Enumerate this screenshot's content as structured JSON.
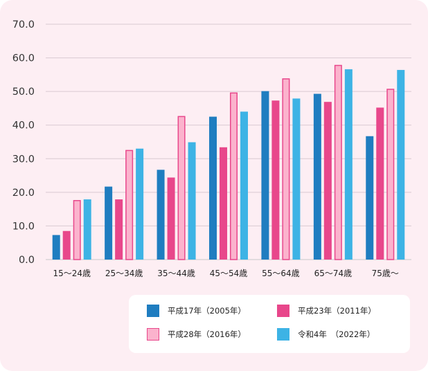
{
  "colors": {
    "background": "#fdeef3",
    "grid": "#d9c9d2",
    "axis": "#c8c8c8"
  },
  "chart_data": {
    "type": "bar",
    "categories": [
      "15〜24歳",
      "25〜34歳",
      "35〜44歳",
      "45〜54歳",
      "55〜64歳",
      "65〜74歳",
      "75歳〜"
    ],
    "ylim": [
      0,
      70
    ],
    "yticks": [
      "0.0",
      "10.0",
      "20.0",
      "30.0",
      "40.0",
      "50.0",
      "60.0",
      "70.0"
    ],
    "grid": true,
    "legend_position": "bottom-right",
    "title": "",
    "xlabel": "",
    "ylabel": "",
    "series": [
      {
        "name": "平成17年（2005年）",
        "color": "#1f7dc0",
        "style": "solid",
        "values": [
          7.3,
          21.7,
          26.7,
          42.5,
          50.1,
          49.3,
          36.7
        ]
      },
      {
        "name": "平成23年（2011年）",
        "color": "#e8478b",
        "style": "solid",
        "values": [
          8.5,
          17.9,
          24.4,
          33.4,
          47.3,
          46.9,
          45.2
        ]
      },
      {
        "name": "平成28年（2016年）",
        "color": "#fbb3cd",
        "border": "#e8478b",
        "style": "outlined",
        "values": [
          17.7,
          32.6,
          42.7,
          49.7,
          53.9,
          57.9,
          50.8
        ]
      },
      {
        "name": "令和4年　（2022年）",
        "color": "#3db3e5",
        "style": "solid",
        "values": [
          17.9,
          33.0,
          34.9,
          44.0,
          47.9,
          56.6,
          56.4
        ]
      }
    ]
  }
}
